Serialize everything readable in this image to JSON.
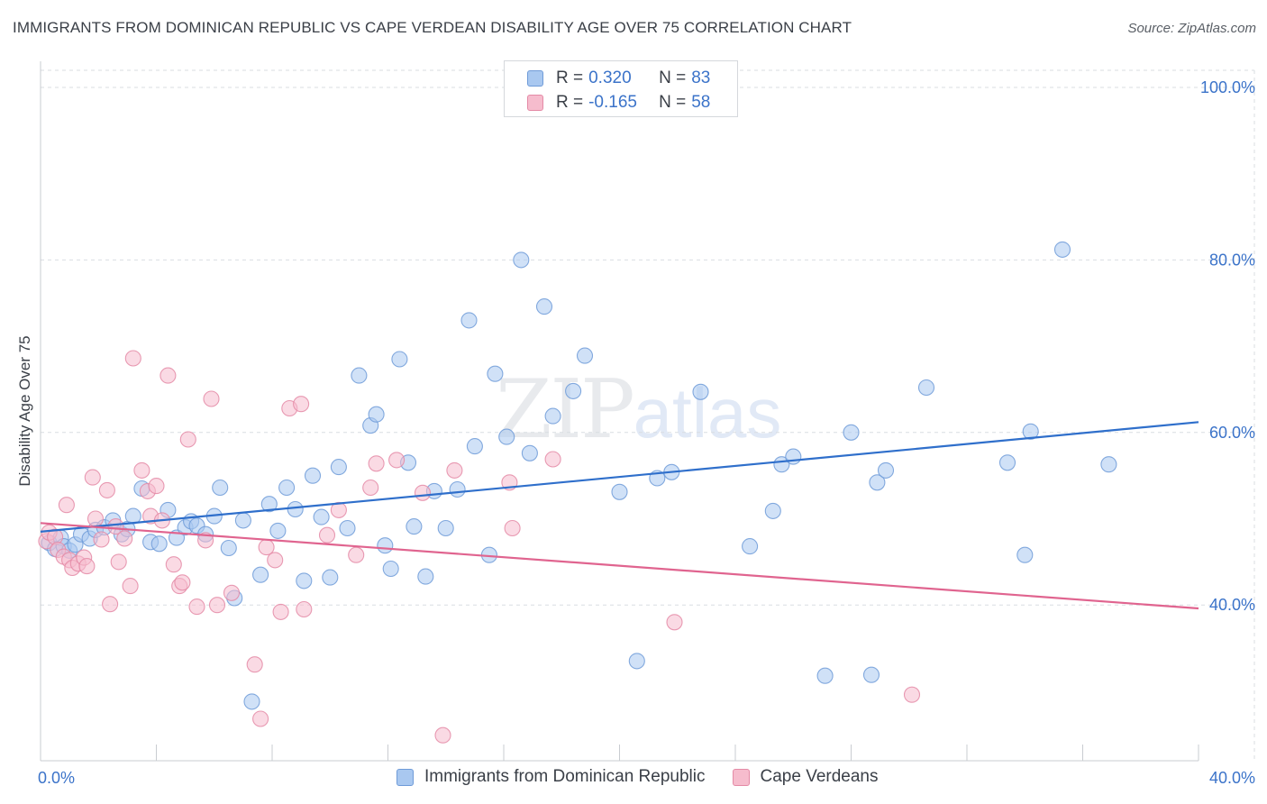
{
  "title": "IMMIGRANTS FROM DOMINICAN REPUBLIC VS CAPE VERDEAN DISABILITY AGE OVER 75 CORRELATION CHART",
  "source": "Source: ZipAtlas.com",
  "watermark": {
    "a": "ZIP",
    "b": "atlas"
  },
  "legend": {
    "r_label": "R =",
    "n_label": "N =",
    "rows": [
      {
        "r": "0.320",
        "n": "83"
      },
      {
        "r": "-0.165",
        "n": "58"
      }
    ]
  },
  "colors": {
    "blue_fill": "#a9c8f0",
    "blue_stroke": "#6f9bd8",
    "blue_line": "#2f6fcb",
    "pink_fill": "#f6bccd",
    "pink_stroke": "#e48aa6",
    "pink_line": "#e0648f",
    "tick_text": "#3b73c9",
    "grid": "#d9dde2"
  },
  "chart_data": {
    "type": "scatter",
    "title": "IMMIGRANTS FROM DOMINICAN REPUBLIC VS CAPE VERDEAN DISABILITY AGE OVER 75 CORRELATION CHART",
    "xlabel": "",
    "ylabel": "Disability Age Over 75",
    "xlim": [
      0,
      40
    ],
    "ylim": [
      22,
      102
    ],
    "x_tick_labels": [
      {
        "value": 0,
        "label": "0.0%"
      },
      {
        "value": 40,
        "label": "40.0%"
      }
    ],
    "y_tick_labels": [
      {
        "value": 100,
        "label": "100.0%"
      },
      {
        "value": 80,
        "label": "80.0%"
      },
      {
        "value": 60,
        "label": "60.0%"
      },
      {
        "value": 40,
        "label": "40.0%"
      }
    ],
    "grid": "horizontal dashed",
    "legend_position": "top-center",
    "series": [
      {
        "name": "Immigrants from Dominican Republic",
        "color": "#a9c8f0",
        "trend": {
          "x": [
            0,
            40
          ],
          "y": [
            48.5,
            61.2
          ]
        },
        "points": [
          [
            0.3,
            47.2
          ],
          [
            0.5,
            46.5
          ],
          [
            0.7,
            47.8
          ],
          [
            0.8,
            46.8
          ],
          [
            1.0,
            46.3
          ],
          [
            1.2,
            47.0
          ],
          [
            1.4,
            48.2
          ],
          [
            1.7,
            47.7
          ],
          [
            1.9,
            48.7
          ],
          [
            2.2,
            49.0
          ],
          [
            2.5,
            49.8
          ],
          [
            2.8,
            48.2
          ],
          [
            3.0,
            48.8
          ],
          [
            3.2,
            50.3
          ],
          [
            3.5,
            53.5
          ],
          [
            3.8,
            47.3
          ],
          [
            4.1,
            47.1
          ],
          [
            4.4,
            51.0
          ],
          [
            4.7,
            47.8
          ],
          [
            5.0,
            49.0
          ],
          [
            5.2,
            49.7
          ],
          [
            5.4,
            49.2
          ],
          [
            5.7,
            48.2
          ],
          [
            6.0,
            50.3
          ],
          [
            6.2,
            53.6
          ],
          [
            6.5,
            46.6
          ],
          [
            6.7,
            40.8
          ],
          [
            7.0,
            49.8
          ],
          [
            7.3,
            28.8
          ],
          [
            7.6,
            43.5
          ],
          [
            7.9,
            51.7
          ],
          [
            8.2,
            48.6
          ],
          [
            8.5,
            53.6
          ],
          [
            8.8,
            51.1
          ],
          [
            9.1,
            42.8
          ],
          [
            9.4,
            55.0
          ],
          [
            9.7,
            50.2
          ],
          [
            10.0,
            43.2
          ],
          [
            10.3,
            56.0
          ],
          [
            10.6,
            48.9
          ],
          [
            11.0,
            66.6
          ],
          [
            11.4,
            60.8
          ],
          [
            11.6,
            62.1
          ],
          [
            11.9,
            46.9
          ],
          [
            12.1,
            44.2
          ],
          [
            12.4,
            68.5
          ],
          [
            12.7,
            56.5
          ],
          [
            12.9,
            49.1
          ],
          [
            13.3,
            43.3
          ],
          [
            13.6,
            53.2
          ],
          [
            14.0,
            48.9
          ],
          [
            14.4,
            53.4
          ],
          [
            14.8,
            73.0
          ],
          [
            15.0,
            58.4
          ],
          [
            15.5,
            45.8
          ],
          [
            15.7,
            66.8
          ],
          [
            16.1,
            59.5
          ],
          [
            16.6,
            80.0
          ],
          [
            16.9,
            57.6
          ],
          [
            17.4,
            74.6
          ],
          [
            17.7,
            61.9
          ],
          [
            18.4,
            64.8
          ],
          [
            18.8,
            68.9
          ],
          [
            20.0,
            53.1
          ],
          [
            20.6,
            33.5
          ],
          [
            21.3,
            54.7
          ],
          [
            21.8,
            55.4
          ],
          [
            22.8,
            64.7
          ],
          [
            24.5,
            46.8
          ],
          [
            25.3,
            50.9
          ],
          [
            25.6,
            56.3
          ],
          [
            26.0,
            57.2
          ],
          [
            27.1,
            31.8
          ],
          [
            28.0,
            60.0
          ],
          [
            28.7,
            31.9
          ],
          [
            28.9,
            54.2
          ],
          [
            29.2,
            55.6
          ],
          [
            30.6,
            65.2
          ],
          [
            33.4,
            56.5
          ],
          [
            34.0,
            45.8
          ],
          [
            34.2,
            60.1
          ],
          [
            35.3,
            81.2
          ],
          [
            36.9,
            56.3
          ]
        ]
      },
      {
        "name": "Cape Verdeans",
        "color": "#f6bccd",
        "trend": {
          "x": [
            0,
            40
          ],
          "y": [
            49.5,
            39.6
          ]
        },
        "points": [
          [
            0.2,
            47.4
          ],
          [
            0.3,
            48.4
          ],
          [
            0.5,
            47.9
          ],
          [
            0.6,
            46.4
          ],
          [
            0.8,
            45.6
          ],
          [
            0.9,
            51.6
          ],
          [
            1.0,
            45.2
          ],
          [
            1.1,
            44.3
          ],
          [
            1.3,
            44.8
          ],
          [
            1.5,
            45.5
          ],
          [
            1.6,
            44.5
          ],
          [
            1.8,
            54.8
          ],
          [
            1.9,
            50.0
          ],
          [
            2.1,
            47.6
          ],
          [
            2.3,
            53.3
          ],
          [
            2.4,
            40.1
          ],
          [
            2.6,
            49.1
          ],
          [
            2.7,
            45.0
          ],
          [
            2.9,
            47.7
          ],
          [
            3.1,
            42.2
          ],
          [
            3.2,
            68.6
          ],
          [
            3.5,
            55.6
          ],
          [
            3.7,
            53.2
          ],
          [
            3.8,
            50.3
          ],
          [
            4.0,
            53.8
          ],
          [
            4.2,
            49.8
          ],
          [
            4.4,
            66.6
          ],
          [
            4.6,
            44.7
          ],
          [
            4.8,
            42.2
          ],
          [
            4.9,
            42.6
          ],
          [
            5.1,
            59.2
          ],
          [
            5.4,
            39.8
          ],
          [
            5.7,
            47.5
          ],
          [
            5.9,
            63.9
          ],
          [
            6.1,
            40.0
          ],
          [
            6.6,
            41.4
          ],
          [
            7.4,
            33.1
          ],
          [
            7.6,
            26.8
          ],
          [
            7.8,
            46.7
          ],
          [
            8.1,
            45.2
          ],
          [
            8.3,
            39.2
          ],
          [
            8.6,
            62.8
          ],
          [
            9.0,
            63.3
          ],
          [
            9.1,
            39.5
          ],
          [
            9.9,
            48.1
          ],
          [
            10.3,
            51.0
          ],
          [
            10.9,
            45.8
          ],
          [
            11.4,
            53.6
          ],
          [
            11.6,
            56.4
          ],
          [
            12.3,
            56.8
          ],
          [
            13.2,
            53.0
          ],
          [
            13.9,
            24.9
          ],
          [
            14.3,
            55.6
          ],
          [
            16.2,
            54.2
          ],
          [
            16.3,
            48.9
          ],
          [
            17.7,
            56.9
          ],
          [
            21.9,
            38.0
          ],
          [
            30.1,
            29.6
          ]
        ]
      }
    ]
  }
}
